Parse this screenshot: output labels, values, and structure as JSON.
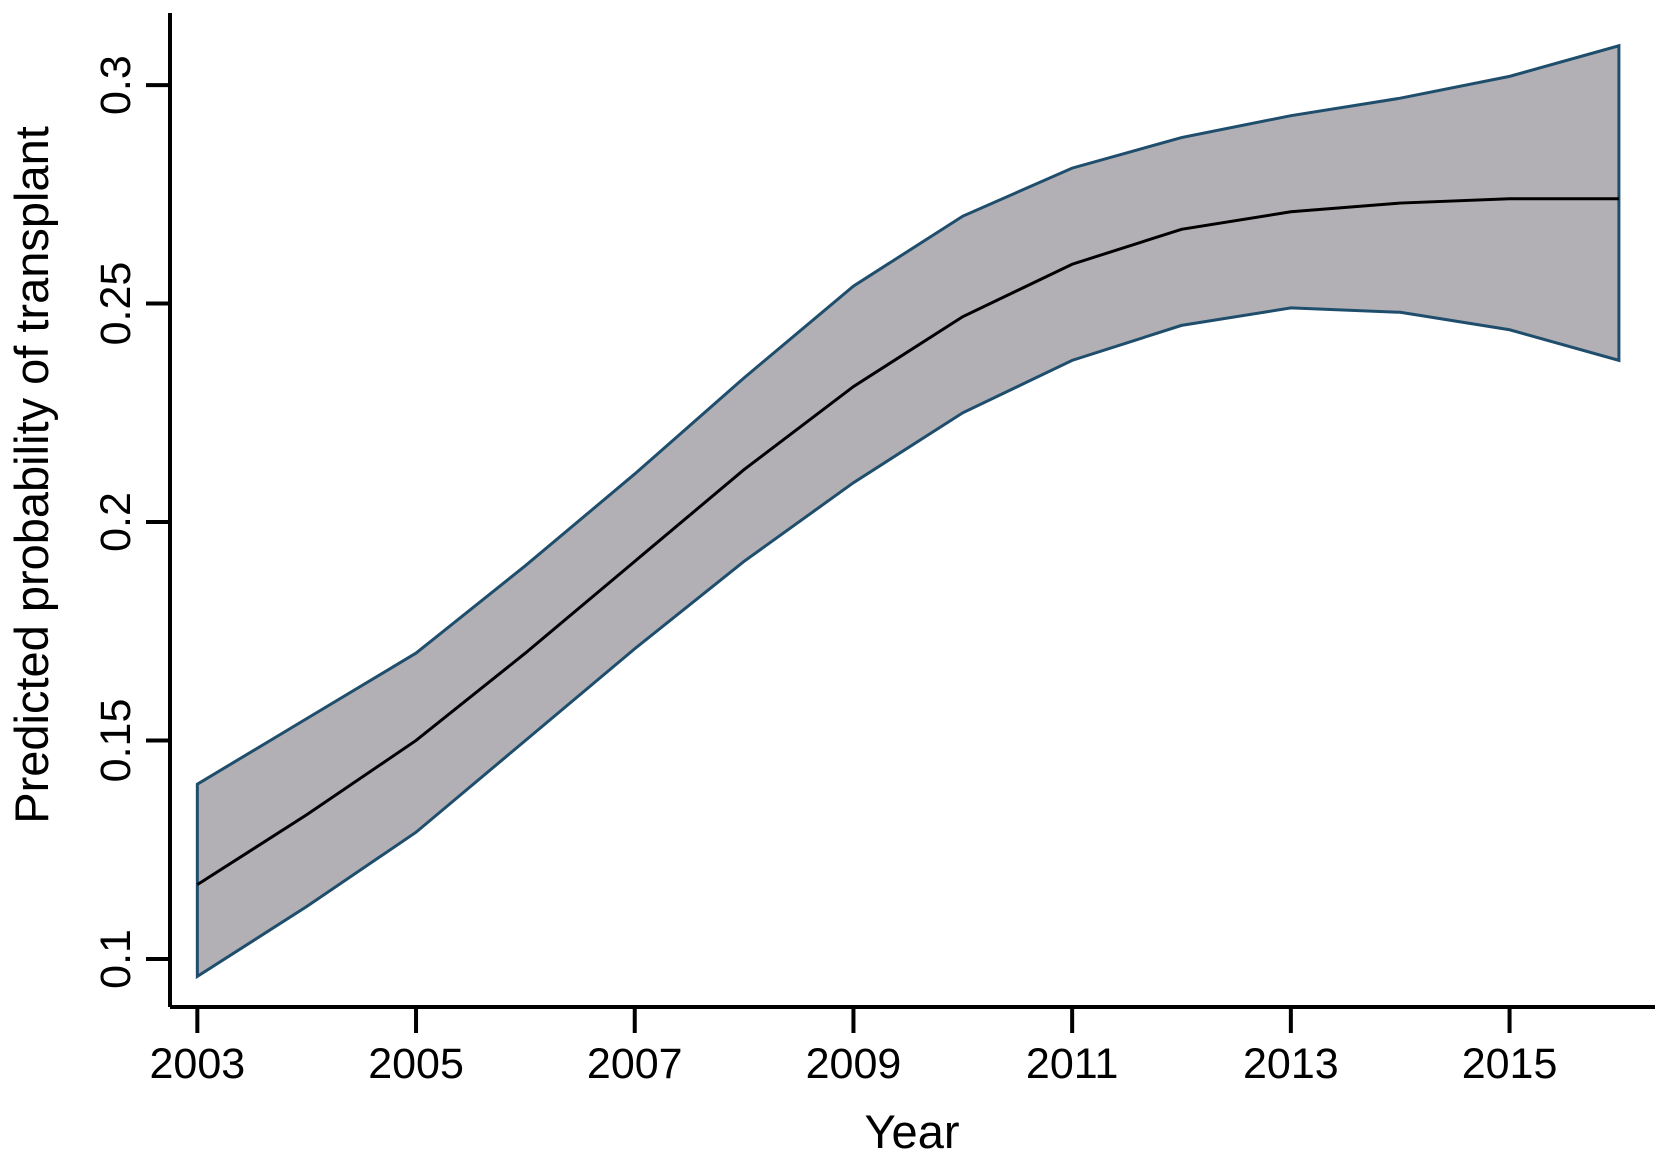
{
  "figure": {
    "background": "#ffffff"
  },
  "chart_data": {
    "type": "line",
    "title": "",
    "xlabel": "Year",
    "ylabel": "Predicted probability of transplant",
    "x": [
      2003,
      2004,
      2005,
      2006,
      2007,
      2008,
      2009,
      2010,
      2011,
      2012,
      2013,
      2014,
      2015,
      2016
    ],
    "series": [
      {
        "name": "Predicted probability of transplant",
        "role": "center",
        "color": "#000000",
        "values": [
          0.117,
          0.133,
          0.15,
          0.17,
          0.191,
          0.212,
          0.231,
          0.247,
          0.259,
          0.267,
          0.271,
          0.273,
          0.274,
          0.274
        ]
      },
      {
        "name": "Confidence interval upper bound",
        "role": "band-upper",
        "color": "#1f4e6d",
        "values": [
          0.14,
          0.155,
          0.17,
          0.19,
          0.211,
          0.233,
          0.254,
          0.27,
          0.281,
          0.288,
          0.293,
          0.297,
          0.302,
          0.309
        ]
      },
      {
        "name": "Confidence interval lower bound",
        "role": "band-lower",
        "color": "#1f4e6d",
        "values": [
          0.096,
          0.112,
          0.129,
          0.15,
          0.171,
          0.191,
          0.209,
          0.225,
          0.237,
          0.245,
          0.249,
          0.248,
          0.244,
          0.237
        ]
      }
    ],
    "band": {
      "fill": "#b2b0b5",
      "border_color": "#1f4e6d"
    },
    "x_ticks": [
      2003,
      2005,
      2007,
      2009,
      2011,
      2013,
      2015
    ],
    "x_tick_labels": [
      "2003",
      "2005",
      "2007",
      "2009",
      "2011",
      "2013",
      "2015"
    ],
    "y_ticks": [
      0.1,
      0.15,
      0.2,
      0.25,
      0.3
    ],
    "y_tick_labels": [
      "0.1",
      "0.15",
      "0.2",
      "0.25",
      "0.3"
    ],
    "y_tick_label_rotation": -90,
    "xlim": [
      2002.75,
      2016.33
    ],
    "ylim": [
      0.089,
      0.3165
    ],
    "grid": false,
    "legend": "none",
    "axis_color": "#000000",
    "center_line_color": "#000000"
  }
}
